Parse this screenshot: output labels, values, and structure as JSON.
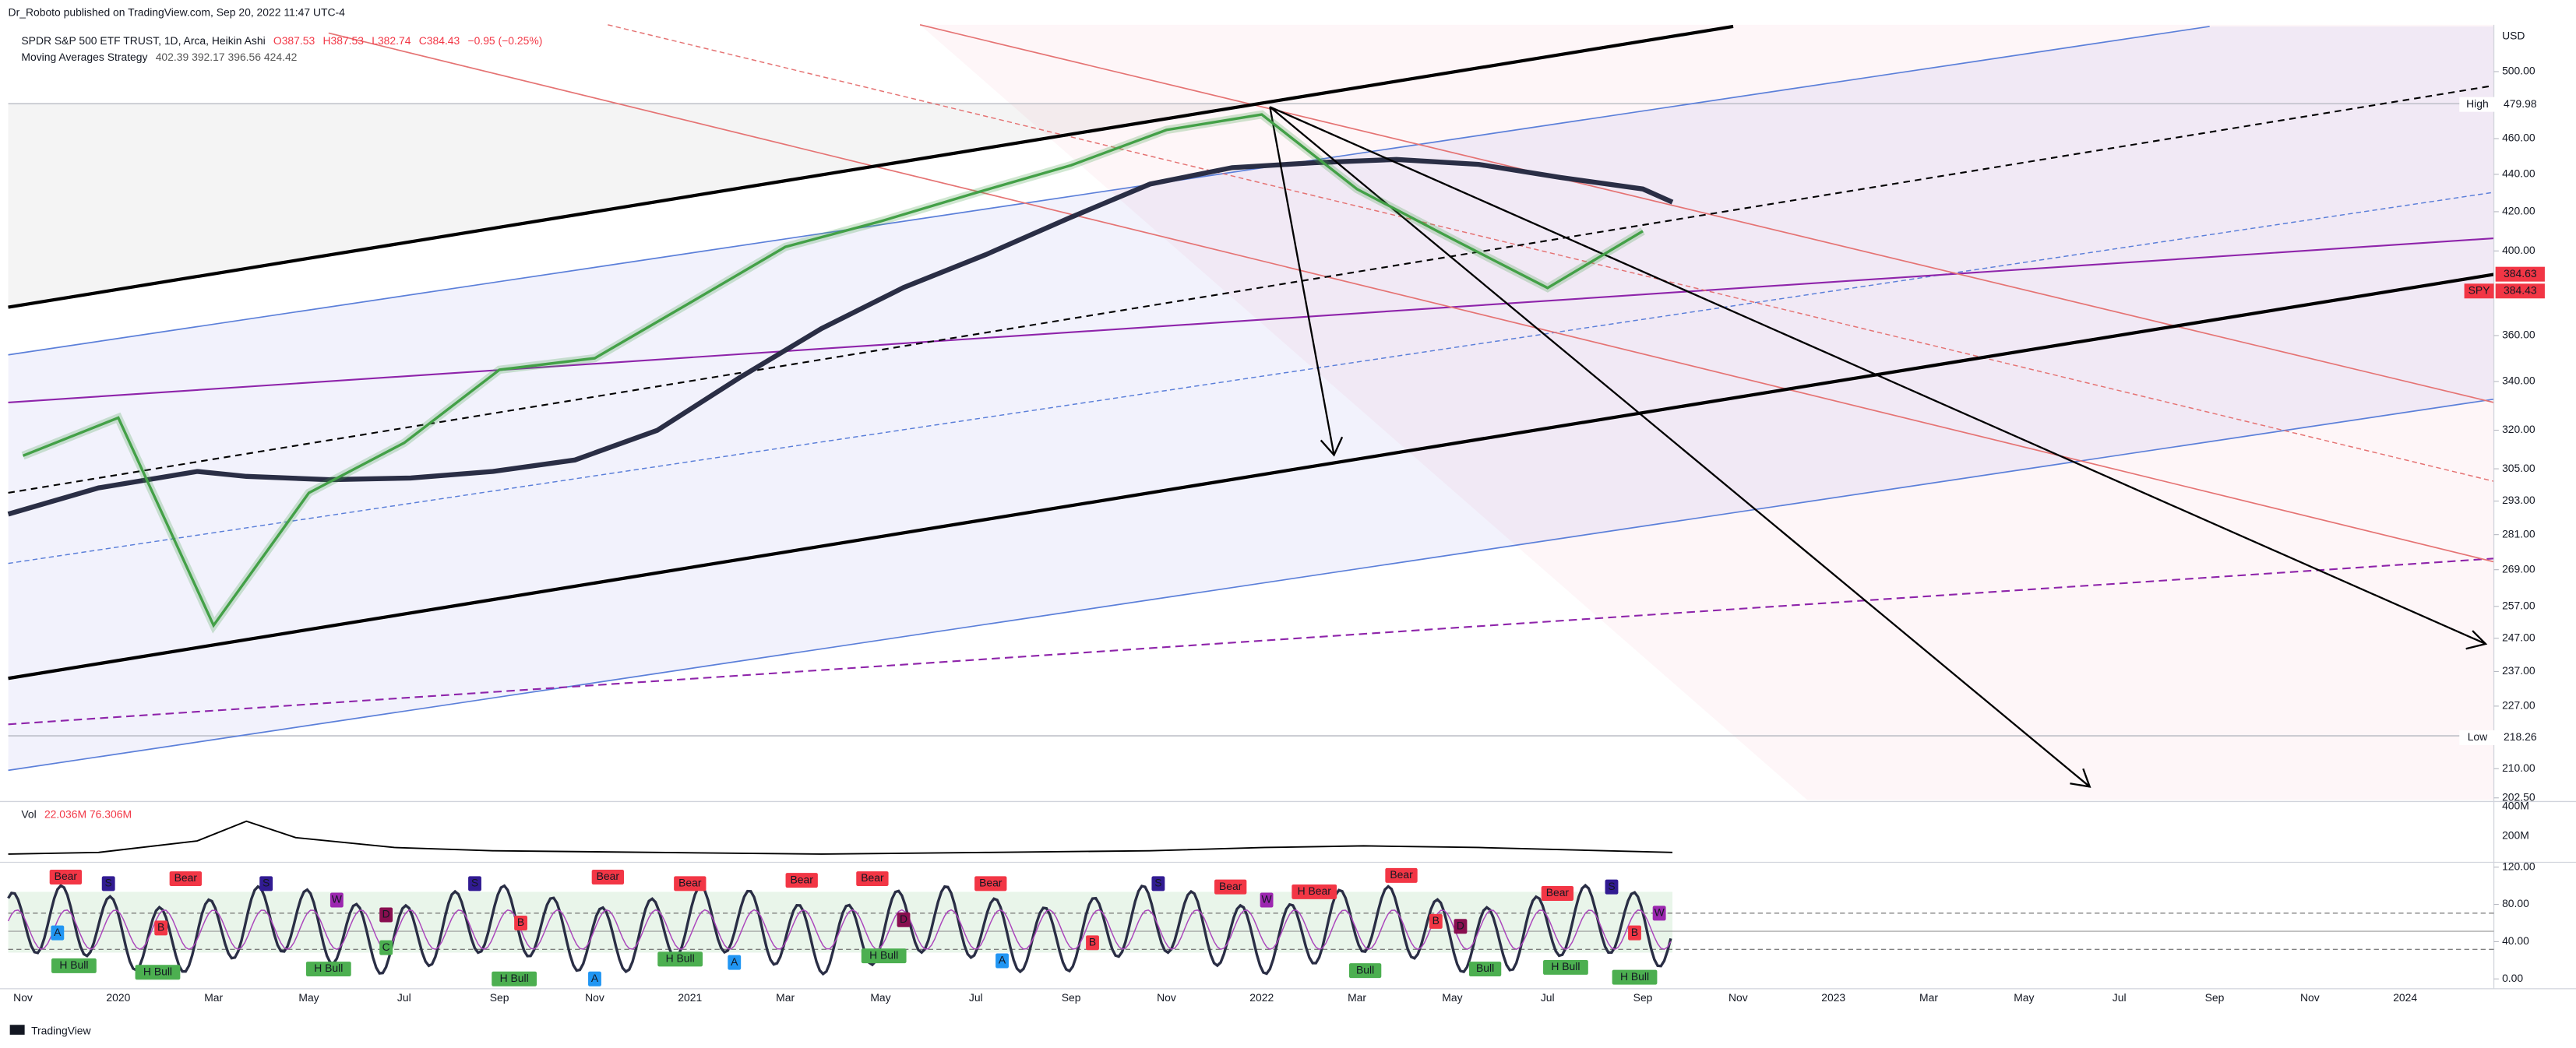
{
  "header": {
    "publisher": "Dr_Roboto published on TradingView.com, Sep 20, 2022 11:47 UTC-4"
  },
  "legend": {
    "symbol": "SPDR S&P 500 ETF TRUST, 1D, Arca, Heikin Ashi",
    "open": "O387.53",
    "high": "H387.53",
    "low": "L382.74",
    "close": "C384.43",
    "change": "−0.95 (−0.25%)",
    "strategy": "Moving Averages Strategy",
    "strategy_values": "402.39 392.17 396.56 424.42"
  },
  "chart_data": {
    "type": "line",
    "currency": "USD",
    "log_scale": true,
    "categories": [
      "Nov",
      "2020",
      "Mar",
      "May",
      "Jul",
      "Sep",
      "Nov",
      "2021",
      "Mar",
      "May",
      "Jul",
      "Sep",
      "Nov",
      "2022",
      "Mar",
      "May",
      "Jul",
      "Sep",
      "Nov",
      "2023",
      "Mar",
      "May",
      "Jul",
      "Sep",
      "Nov",
      "2024"
    ],
    "values": [
      310,
      325,
      251,
      296,
      315,
      345,
      350,
      375,
      402,
      415,
      430,
      445,
      465,
      474,
      432,
      406,
      382,
      410,
      null,
      null,
      null,
      null,
      null,
      null,
      null,
      null
    ],
    "color": "#43a047",
    "ylim": [
      202,
      530
    ],
    "yticks": [
      {
        "value": 500,
        "label": "500.00"
      },
      {
        "value": 460,
        "label": "460.00"
      },
      {
        "value": 440,
        "label": "440.00"
      },
      {
        "value": 420,
        "label": "420.00"
      },
      {
        "value": 400,
        "label": "400.00"
      },
      {
        "value": 360,
        "label": "360.00"
      },
      {
        "value": 340,
        "label": "340.00"
      },
      {
        "value": 320,
        "label": "320.00"
      },
      {
        "value": 305,
        "label": "305.00"
      },
      {
        "value": 293,
        "label": "293.00"
      },
      {
        "value": 281,
        "label": "281.00"
      },
      {
        "value": 269,
        "label": "269.00"
      },
      {
        "value": 257,
        "label": "257.00"
      },
      {
        "value": 247,
        "label": "247.00"
      },
      {
        "value": 237,
        "label": "237.00"
      },
      {
        "value": 227,
        "label": "227.00"
      },
      {
        "value": 210,
        "label": "210.00"
      },
      {
        "value": 202.5,
        "label": "202.50"
      }
    ],
    "high_label": "High",
    "high": 479.98,
    "low_label": "Low",
    "low": 218.26,
    "ma_price": 384.63,
    "last_price": 384.43,
    "last_price_symbol": "SPY"
  },
  "volume": {
    "title": "Vol",
    "values": "22.036M 76.306M",
    "ticks": [
      "400M",
      "200M"
    ]
  },
  "oscillator": {
    "ylim": [
      -7,
      127
    ],
    "yticks": [
      {
        "value": 120,
        "label": "120.00"
      },
      {
        "value": 80,
        "label": "80.00"
      },
      {
        "value": 40,
        "label": "40.00"
      },
      {
        "value": 0,
        "label": "0.00"
      }
    ],
    "badges": [
      {
        "text": "Bear",
        "color": "#f23645"
      },
      {
        "text": "S",
        "color": "#311b92"
      },
      {
        "text": "A",
        "color": "#2196f3"
      },
      {
        "text": "H Bull",
        "color": "#4caf50"
      },
      {
        "text": "B",
        "color": "#f23645"
      },
      {
        "text": "H Bull",
        "color": "#4caf50"
      },
      {
        "text": "Bear",
        "color": "#f23645"
      },
      {
        "text": "S",
        "color": "#311b92"
      },
      {
        "text": "W",
        "color": "#9c27b0"
      },
      {
        "text": "H Bull",
        "color": "#4caf50"
      },
      {
        "text": "D",
        "color": "#880e4f"
      },
      {
        "text": "C",
        "color": "#4caf50"
      },
      {
        "text": "S",
        "color": "#311b92"
      },
      {
        "text": "B",
        "color": "#f23645"
      },
      {
        "text": "H Bull",
        "color": "#4caf50"
      },
      {
        "text": "Bear",
        "color": "#f23645"
      },
      {
        "text": "A",
        "color": "#2196f3"
      },
      {
        "text": "Bear",
        "color": "#f23645"
      },
      {
        "text": "H Bull",
        "color": "#4caf50"
      },
      {
        "text": "Bear",
        "color": "#f23645"
      },
      {
        "text": "A",
        "color": "#2196f3"
      },
      {
        "text": "Bear",
        "color": "#f23645"
      },
      {
        "text": "H Bull",
        "color": "#4caf50"
      },
      {
        "text": "D",
        "color": "#880e4f"
      },
      {
        "text": "Bear",
        "color": "#f23645"
      },
      {
        "text": "A",
        "color": "#2196f3"
      },
      {
        "text": "S",
        "color": "#311b92"
      },
      {
        "text": "B",
        "color": "#f23645"
      },
      {
        "text": "Bear",
        "color": "#f23645"
      },
      {
        "text": "W",
        "color": "#9c27b0"
      },
      {
        "text": "H Bear",
        "color": "#f23645"
      },
      {
        "text": "Bull",
        "color": "#4caf50"
      },
      {
        "text": "Bear",
        "color": "#f23645"
      },
      {
        "text": "B",
        "color": "#f23645"
      },
      {
        "text": "D",
        "color": "#880e4f"
      },
      {
        "text": "Bull",
        "color": "#4caf50"
      },
      {
        "text": "Bear",
        "color": "#f23645"
      },
      {
        "text": "H Bull",
        "color": "#4caf50"
      },
      {
        "text": "S",
        "color": "#311b92"
      },
      {
        "text": "B",
        "color": "#f23645"
      },
      {
        "text": "W",
        "color": "#9c27b0"
      },
      {
        "text": "H Bull",
        "color": "#4caf50"
      }
    ]
  },
  "footer": {
    "brand": "TradingView"
  }
}
